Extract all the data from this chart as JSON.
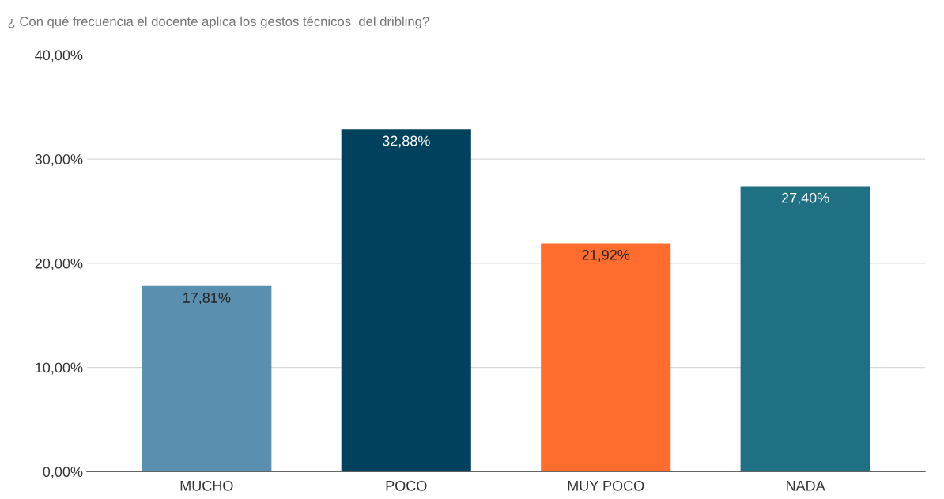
{
  "chart_data": {
    "type": "bar",
    "title": "¿ Con qué frecuencia el docente aplica los gestos técnicos  del dribling?",
    "categories": [
      "MUCHO",
      "POCO",
      "MUY POCO",
      "NADA"
    ],
    "values": [
      17.81,
      32.88,
      21.92,
      27.4
    ],
    "colors": [
      "#5b8fb0",
      "#00415e",
      "#ff6d2e",
      "#1f7083"
    ],
    "value_labels": [
      "17,81%",
      "32,88%",
      "21,92%",
      "27,40%"
    ],
    "ylim": [
      0,
      40
    ],
    "yticks": [
      {
        "value": 0,
        "label": "0,00%"
      },
      {
        "value": 10,
        "label": "10,00%"
      },
      {
        "value": 20,
        "label": "20,00%"
      },
      {
        "value": 30,
        "label": "30,00%"
      },
      {
        "value": 40,
        "label": "40,00%"
      }
    ],
    "grid": "y",
    "legend": false
  }
}
